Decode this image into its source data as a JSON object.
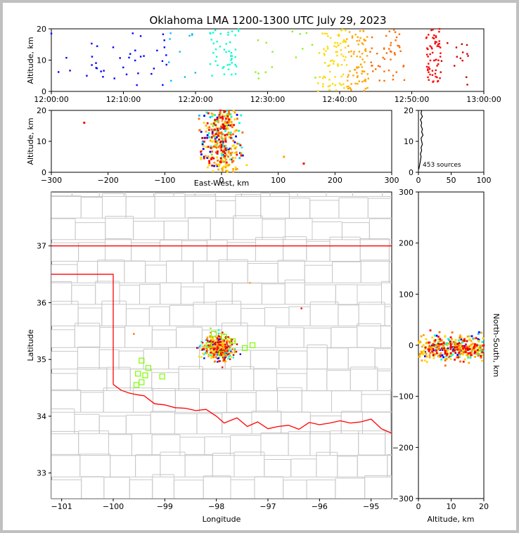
{
  "chart_data": [
    {
      "panel": "altitude-vs-time",
      "type": "scatter",
      "title": "Oklahoma LMA 1200-1300 UTC July 29, 2023",
      "xlabel": "",
      "ylabel": "Altitude, km",
      "x_tick_labels": [
        "12:00:00",
        "12:10:00",
        "12:20:00",
        "12:30:00",
        "12:40:00",
        "12:50:00",
        "13:00:00"
      ],
      "y_tick_labels": [
        "0",
        "10",
        "20"
      ],
      "xlim": [
        "12:00:00",
        "13:00:00"
      ],
      "ylim": [
        0,
        20
      ],
      "color_scale": "time (blue → cyan → green → yellow → orange → red)",
      "clusters": [
        {
          "time_min": [
            0,
            17
          ],
          "alt_km": [
            1,
            20
          ],
          "color": "#0000ff",
          "count": 40
        },
        {
          "time_min": [
            16,
            20
          ],
          "alt_km": [
            2,
            20
          ],
          "color": "#00bfff",
          "count": 10
        },
        {
          "time_min": [
            22,
            26
          ],
          "alt_km": [
            5,
            20
          ],
          "color": "#00ffcc",
          "count": 45
        },
        {
          "time_min": [
            28,
            37
          ],
          "alt_km": [
            4,
            20
          ],
          "color": "#90ee20",
          "count": 15
        },
        {
          "time_min": [
            37,
            41
          ],
          "alt_km": [
            0,
            20
          ],
          "color": "#ffd800",
          "count": 75
        },
        {
          "time_min": [
            41,
            44
          ],
          "alt_km": [
            0,
            20
          ],
          "color": "#ffa500",
          "count": 75
        },
        {
          "time_min": [
            44,
            49
          ],
          "alt_km": [
            3,
            20
          ],
          "color": "#ff6a00",
          "count": 45
        },
        {
          "time_min": [
            52,
            54
          ],
          "alt_km": [
            3,
            20
          ],
          "color": "#ff0000",
          "count": 60
        },
        {
          "time_min": [
            54,
            58
          ],
          "alt_km": [
            2,
            16
          ],
          "color": "#d00000",
          "count": 15
        }
      ]
    },
    {
      "panel": "altitude-vs-east-west",
      "type": "scatter",
      "xlabel": "East-West, km",
      "ylabel": "Altitude, km",
      "x_tick_labels": [
        "−300",
        "−200",
        "−100",
        "0",
        "100",
        "200",
        "300"
      ],
      "y_tick_labels": [
        "0",
        "10",
        "20"
      ],
      "xlim": [
        -300,
        300
      ],
      "ylim": [
        0,
        20
      ],
      "isolated_points": [
        {
          "x": -242,
          "y": 16,
          "color": "#ff0000"
        },
        {
          "x": 145,
          "y": 2.8,
          "color": "#ff0000"
        },
        {
          "x": 110,
          "y": 5,
          "color": "#ffa500"
        }
      ]
    },
    {
      "panel": "altitude-histogram",
      "type": "line",
      "xlabel": "",
      "x_tick_labels": [
        "0",
        "50",
        "100"
      ],
      "y_tick_labels": [
        "0",
        "10",
        "20"
      ],
      "xlim": [
        0,
        100
      ],
      "ylim": [
        0,
        20
      ],
      "annotation": "453 sources",
      "profile": [
        [
          0.5,
          1
        ],
        [
          1.5,
          2
        ],
        [
          2.5,
          3
        ],
        [
          4,
          5
        ],
        [
          3,
          6
        ],
        [
          5,
          7
        ],
        [
          4,
          8
        ],
        [
          6,
          9
        ],
        [
          5,
          10
        ],
        [
          4,
          11
        ],
        [
          7,
          12
        ],
        [
          5,
          13
        ],
        [
          6,
          14
        ],
        [
          4,
          15
        ],
        [
          5,
          16
        ],
        [
          3,
          17
        ],
        [
          6,
          18
        ],
        [
          4,
          19
        ],
        [
          5,
          20
        ]
      ]
    },
    {
      "panel": "plan-view-map",
      "type": "scatter",
      "xlabel": "Longitude",
      "ylabel": "Latitude",
      "x_tick_labels": [
        "−101",
        "−100",
        "−99",
        "−98",
        "−97",
        "−96",
        "−95"
      ],
      "y_tick_labels": [
        "33",
        "34",
        "35",
        "36",
        "37"
      ],
      "xlim": [
        -101.2,
        -94.6
      ],
      "ylim": [
        32.55,
        37.95
      ],
      "stations": [
        [
          -99.45,
          34.98
        ],
        [
          -99.32,
          34.85
        ],
        [
          -99.38,
          34.72
        ],
        [
          -99.52,
          34.75
        ],
        [
          -99.45,
          34.6
        ],
        [
          -99.55,
          34.55
        ],
        [
          -99.05,
          34.7
        ],
        [
          -98.05,
          35.45
        ],
        [
          -97.85,
          35.4
        ],
        [
          -97.45,
          35.2
        ],
        [
          -97.3,
          35.25
        ],
        [
          -97.9,
          35.1
        ],
        [
          -98.15,
          35.25
        ],
        [
          -97.68,
          35.32
        ]
      ],
      "isolated_points": [
        {
          "lon": -99.6,
          "lat": 35.45,
          "color": "#ff6a00"
        },
        {
          "lon": -96.35,
          "lat": 35.9,
          "color": "#ff0000"
        },
        {
          "lon": -97.35,
          "lat": 36.35,
          "color": "#ffa500"
        }
      ]
    },
    {
      "panel": "north-south-vs-altitude",
      "type": "scatter",
      "xlabel": "Altitude, km",
      "ylabel": "North-South, km",
      "x_tick_labels": [
        "0",
        "10",
        "20"
      ],
      "y_tick_labels": [
        "300",
        "200",
        "100",
        "0",
        "−100",
        "−200",
        "−300"
      ],
      "xlim": [
        0,
        20
      ],
      "ylim": [
        -300,
        300
      ]
    }
  ]
}
